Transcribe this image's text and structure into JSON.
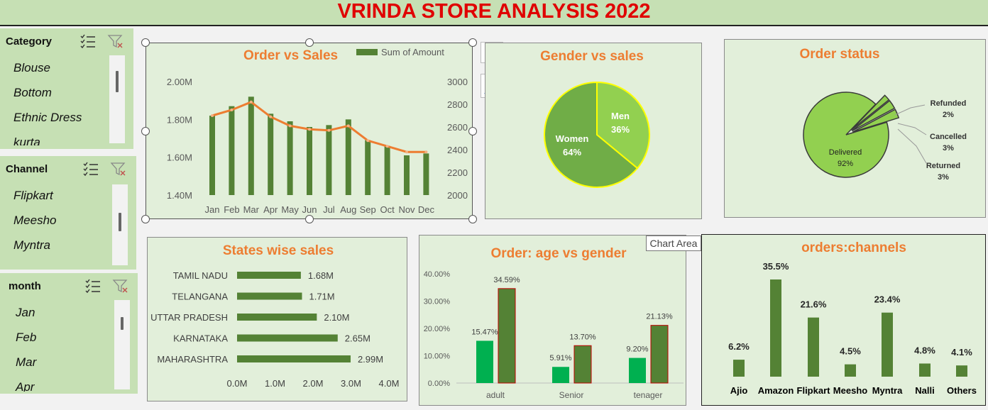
{
  "title": "VRINDA STORE ANALYSIS 2022",
  "slicers": [
    {
      "title": "Category",
      "items": [
        "Blouse",
        "Bottom",
        "Ethnic Dress",
        "kurta"
      ]
    },
    {
      "title": "Channel",
      "items": [
        "Flipkart",
        "Meesho",
        "Myntra"
      ]
    },
    {
      "title": "month",
      "items": [
        "Jan",
        "Feb",
        "Mar",
        "Apr"
      ]
    }
  ],
  "tooltip": "Chart Area",
  "colors": {
    "bar_green": "#548235",
    "orange": "#ed7d31",
    "light_green": "#92d050",
    "mid_green": "#70ad47",
    "teal_green": "#00b050",
    "title_red": "#e00000"
  },
  "chart_data": [
    {
      "type": "bar",
      "title": "Order vs Sales",
      "categories": [
        "Jan",
        "Feb",
        "Mar",
        "Apr",
        "May",
        "Jun",
        "Jul",
        "Aug",
        "Sep",
        "Oct",
        "Nov",
        "Dec"
      ],
      "series": [
        {
          "name": "Sum of Amount",
          "type": "bar",
          "axis": "left",
          "values": [
            1.82,
            1.87,
            1.92,
            1.83,
            1.79,
            1.76,
            1.77,
            1.8,
            1.69,
            1.66,
            1.61,
            1.62
          ]
        },
        {
          "type": "line",
          "axis": "right",
          "values": [
            2700,
            2750,
            2820,
            2690,
            2610,
            2580,
            2570,
            2610,
            2480,
            2430,
            2380,
            2380
          ]
        }
      ],
      "left_ticks": [
        "2.00M",
        "1.80M",
        "1.60M",
        "1.40M"
      ],
      "right_ticks": [
        "3000",
        "2800",
        "2600",
        "2400",
        "2200",
        "2000"
      ],
      "ylim_left": [
        1.4,
        2.0
      ],
      "ylim_right": [
        2000,
        3000
      ],
      "legend": "top-right"
    },
    {
      "type": "pie",
      "title": "Gender vs sales",
      "labels": [
        "Men",
        "Women"
      ],
      "values": [
        36,
        64
      ],
      "value_labels": [
        "36%",
        "64%"
      ]
    },
    {
      "type": "pie",
      "title": "Order status",
      "labels": [
        "Delivered",
        "Refunded",
        "Cancelled",
        "Returned"
      ],
      "values": [
        92,
        2,
        3,
        3
      ],
      "value_labels": [
        "92%",
        "2%",
        "3%",
        "3%"
      ]
    },
    {
      "type": "bar",
      "orientation": "horizontal",
      "title": "States wise sales",
      "categories": [
        "TAMIL NADU",
        "TELANGANA",
        "UTTAR PRADESH",
        "KARNATAKA",
        "MAHARASHTRA"
      ],
      "values": [
        1.68,
        1.71,
        2.1,
        2.65,
        2.99
      ],
      "value_labels": [
        "1.68M",
        "1.71M",
        "2.10M",
        "2.65M",
        "2.99M"
      ],
      "x_ticks": [
        "0.0M",
        "1.0M",
        "2.0M",
        "3.0M",
        "4.0M"
      ],
      "xlim": [
        0,
        4
      ]
    },
    {
      "type": "bar",
      "title": "Order: age vs gender",
      "categories": [
        "adult",
        "Senior",
        "tenager"
      ],
      "series": [
        {
          "values": [
            15.47,
            5.91,
            9.2
          ],
          "value_labels": [
            "15.47%",
            "5.91%",
            "9.20%"
          ]
        },
        {
          "values": [
            34.59,
            13.7,
            21.13
          ],
          "value_labels": [
            "34.59%",
            "13.70%",
            "21.13%"
          ]
        }
      ],
      "y_ticks": [
        "40.00%",
        "30.00%",
        "20.00%",
        "10.00%",
        "0.00%"
      ],
      "ylim": [
        0,
        40
      ]
    },
    {
      "type": "bar",
      "title": "orders:channels",
      "categories": [
        "Ajio",
        "Amazon",
        "Flipkart",
        "Meesho",
        "Myntra",
        "Nalli",
        "Others"
      ],
      "values": [
        6.2,
        35.5,
        21.6,
        4.5,
        23.4,
        4.8,
        4.1
      ],
      "value_labels": [
        "6.2%",
        "35.5%",
        "21.6%",
        "4.5%",
        "23.4%",
        "4.8%",
        "4.1%"
      ]
    }
  ]
}
